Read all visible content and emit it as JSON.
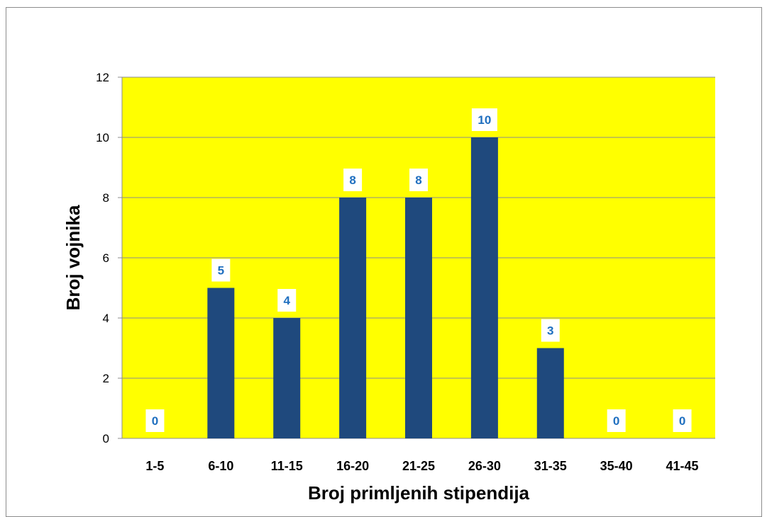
{
  "chart_data": {
    "type": "bar",
    "categories": [
      "1-5",
      "6-10",
      "11-15",
      "16-20",
      "21-25",
      "26-30",
      "31-35",
      "35-40",
      "41-45"
    ],
    "values": [
      0,
      5,
      4,
      8,
      8,
      10,
      3,
      0,
      0
    ],
    "data_labels": [
      "0",
      "5",
      "4",
      "8",
      "8",
      "10",
      "3",
      "0",
      "0"
    ],
    "title": "",
    "xlabel": "Broj primljenih stipendija",
    "ylabel": "Broj vojnika",
    "ylim": [
      0,
      12
    ],
    "yticks": [
      "0",
      "2",
      "4",
      "6",
      "8",
      "10",
      "12"
    ],
    "grid": true,
    "colors": {
      "plot_background": "#ffff00",
      "bar": "#1f497d",
      "data_label": "#1f6fbf",
      "grid": "#8c8c8c"
    }
  }
}
